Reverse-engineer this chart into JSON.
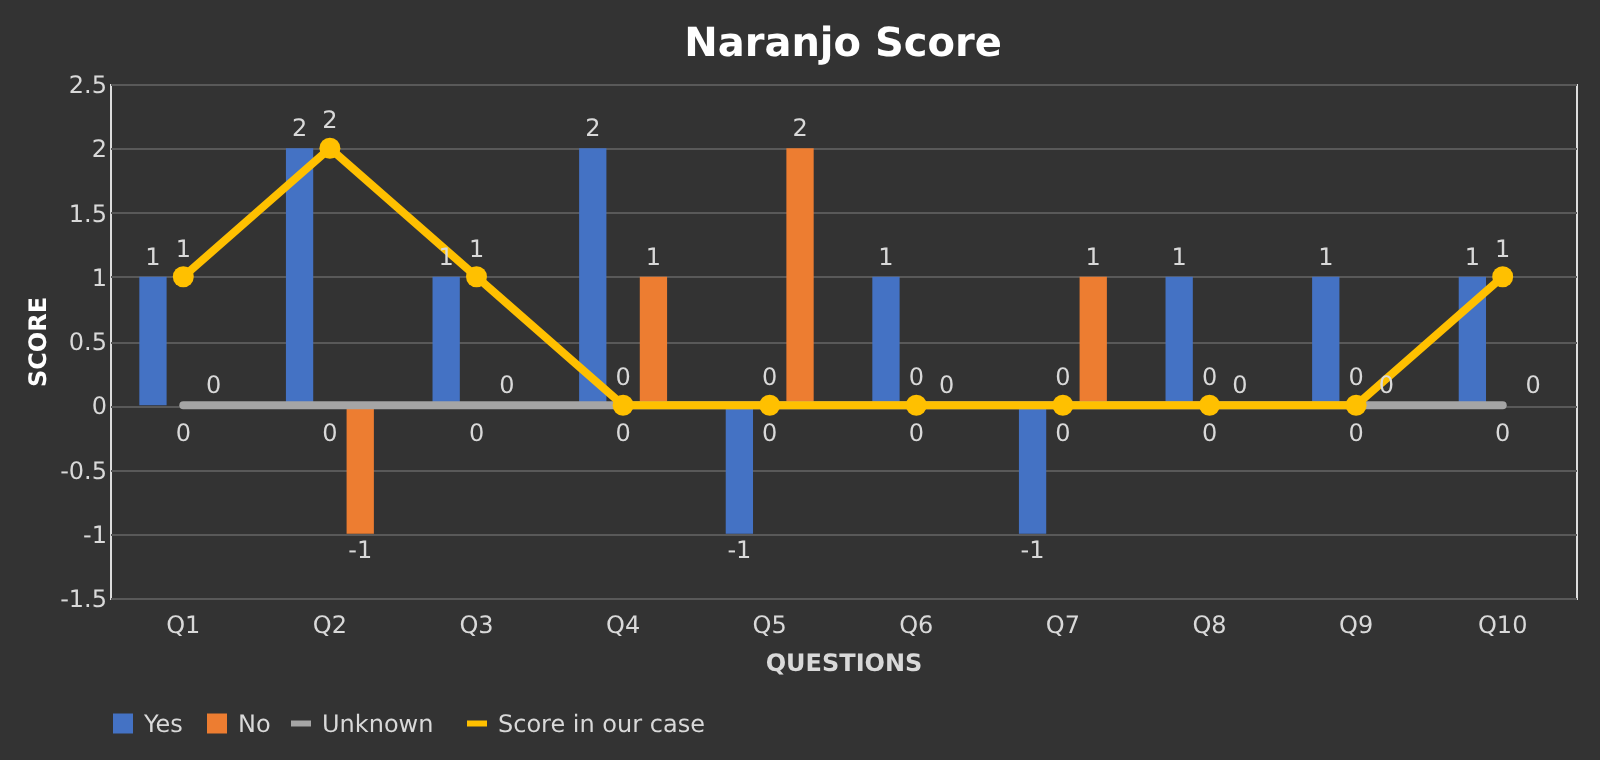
{
  "chart_data": {
    "type": "bar",
    "title": "Naranjo Score",
    "xlabel": "QUESTIONS",
    "ylabel": "SCORE",
    "categories": [
      "Q1",
      "Q2",
      "Q3",
      "Q4",
      "Q5",
      "Q6",
      "Q7",
      "Q8",
      "Q9",
      "Q10"
    ],
    "series": [
      {
        "name": "Yes",
        "color": "#4472c4",
        "values": [
          1,
          2,
          1,
          2,
          -1,
          1,
          -1,
          1,
          1,
          1
        ]
      },
      {
        "name": "No",
        "color": "#ed7d31",
        "values": [
          0,
          -1,
          0,
          1,
          2,
          0,
          1,
          0,
          0,
          0
        ]
      },
      {
        "name": "Unknown",
        "type": "line",
        "color": "#a5a5a5",
        "marker": "none",
        "line_style": "solid",
        "values": [
          0,
          0,
          0,
          0,
          0,
          0,
          0,
          0,
          0,
          0
        ]
      },
      {
        "name": "Score in our case",
        "type": "line",
        "color": "#ffc000",
        "marker": "circle",
        "line_style": "solid",
        "values": [
          1,
          2,
          1,
          0,
          0,
          0,
          0,
          0,
          0,
          1
        ]
      }
    ],
    "ylim": [
      -1.5,
      2.5
    ],
    "yticks": [
      -1.5,
      -1,
      -0.5,
      0,
      0.5,
      1,
      1.5,
      2,
      2.5
    ],
    "grid": "y",
    "legend": "bottom",
    "data_labels": true
  }
}
